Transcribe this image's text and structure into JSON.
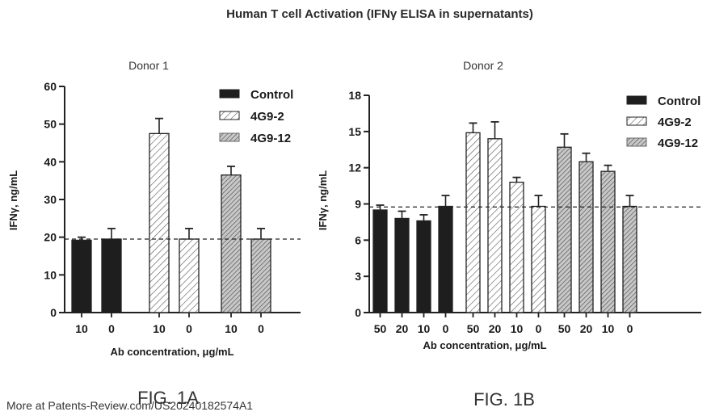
{
  "title": "Human T cell Activation (IFNγ ELISA in supernatants)",
  "footer": "More at Patents-Review.com/US20240182574A1",
  "series_colors": {
    "Control": "#1e1e1e",
    "4G9-2": "#ffffff",
    "4G9-12": "#b0b0b0"
  },
  "chart_data": [
    {
      "type": "bar",
      "title": "Donor 1",
      "figure_label": "FIG. 1A",
      "xlabel": "Ab concentration,  μg/mL",
      "ylabel": "IFNγ, ng/mL",
      "ylim": [
        0,
        60
      ],
      "yticks": [
        0,
        10,
        20,
        30,
        40,
        50,
        60
      ],
      "reference_line": 19.5,
      "legend": [
        "Control",
        "4G9-2",
        "4G9-12"
      ],
      "legend_position": "top-right",
      "series": [
        {
          "name": "Control",
          "categories": [
            "10",
            "0"
          ],
          "values": [
            19.2,
            19.5
          ],
          "errors": [
            0.8,
            2.8
          ]
        },
        {
          "name": "4G9-2",
          "categories": [
            "10",
            "0"
          ],
          "values": [
            47.5,
            19.5
          ],
          "errors": [
            4.0,
            2.8
          ]
        },
        {
          "name": "4G9-12",
          "categories": [
            "10",
            "0"
          ],
          "values": [
            36.5,
            19.5
          ],
          "errors": [
            2.3,
            2.8
          ]
        }
      ]
    },
    {
      "type": "bar",
      "title": "Donor 2",
      "figure_label": "FIG. 1B",
      "xlabel": "Ab concentration,  μg/mL",
      "ylabel": "IFNγ, ng/mL",
      "ylim": [
        0,
        18
      ],
      "yticks": [
        0,
        3,
        6,
        9,
        12,
        15,
        18
      ],
      "reference_line": 8.75,
      "legend": [
        "Control",
        "4G9-2",
        "4G9-12"
      ],
      "legend_position": "top-right",
      "series": [
        {
          "name": "Control",
          "categories": [
            "50",
            "20",
            "10",
            "0"
          ],
          "values": [
            8.5,
            7.8,
            7.6,
            8.8
          ],
          "errors": [
            0.4,
            0.6,
            0.5,
            0.9
          ]
        },
        {
          "name": "4G9-2",
          "categories": [
            "50",
            "20",
            "10",
            "0"
          ],
          "values": [
            14.9,
            14.4,
            10.8,
            8.8
          ],
          "errors": [
            0.8,
            1.4,
            0.4,
            0.9
          ]
        },
        {
          "name": "4G9-12",
          "categories": [
            "50",
            "20",
            "10",
            "0"
          ],
          "values": [
            13.7,
            12.5,
            11.7,
            8.8
          ],
          "errors": [
            1.1,
            0.7,
            0.5,
            0.9
          ]
        }
      ]
    }
  ]
}
